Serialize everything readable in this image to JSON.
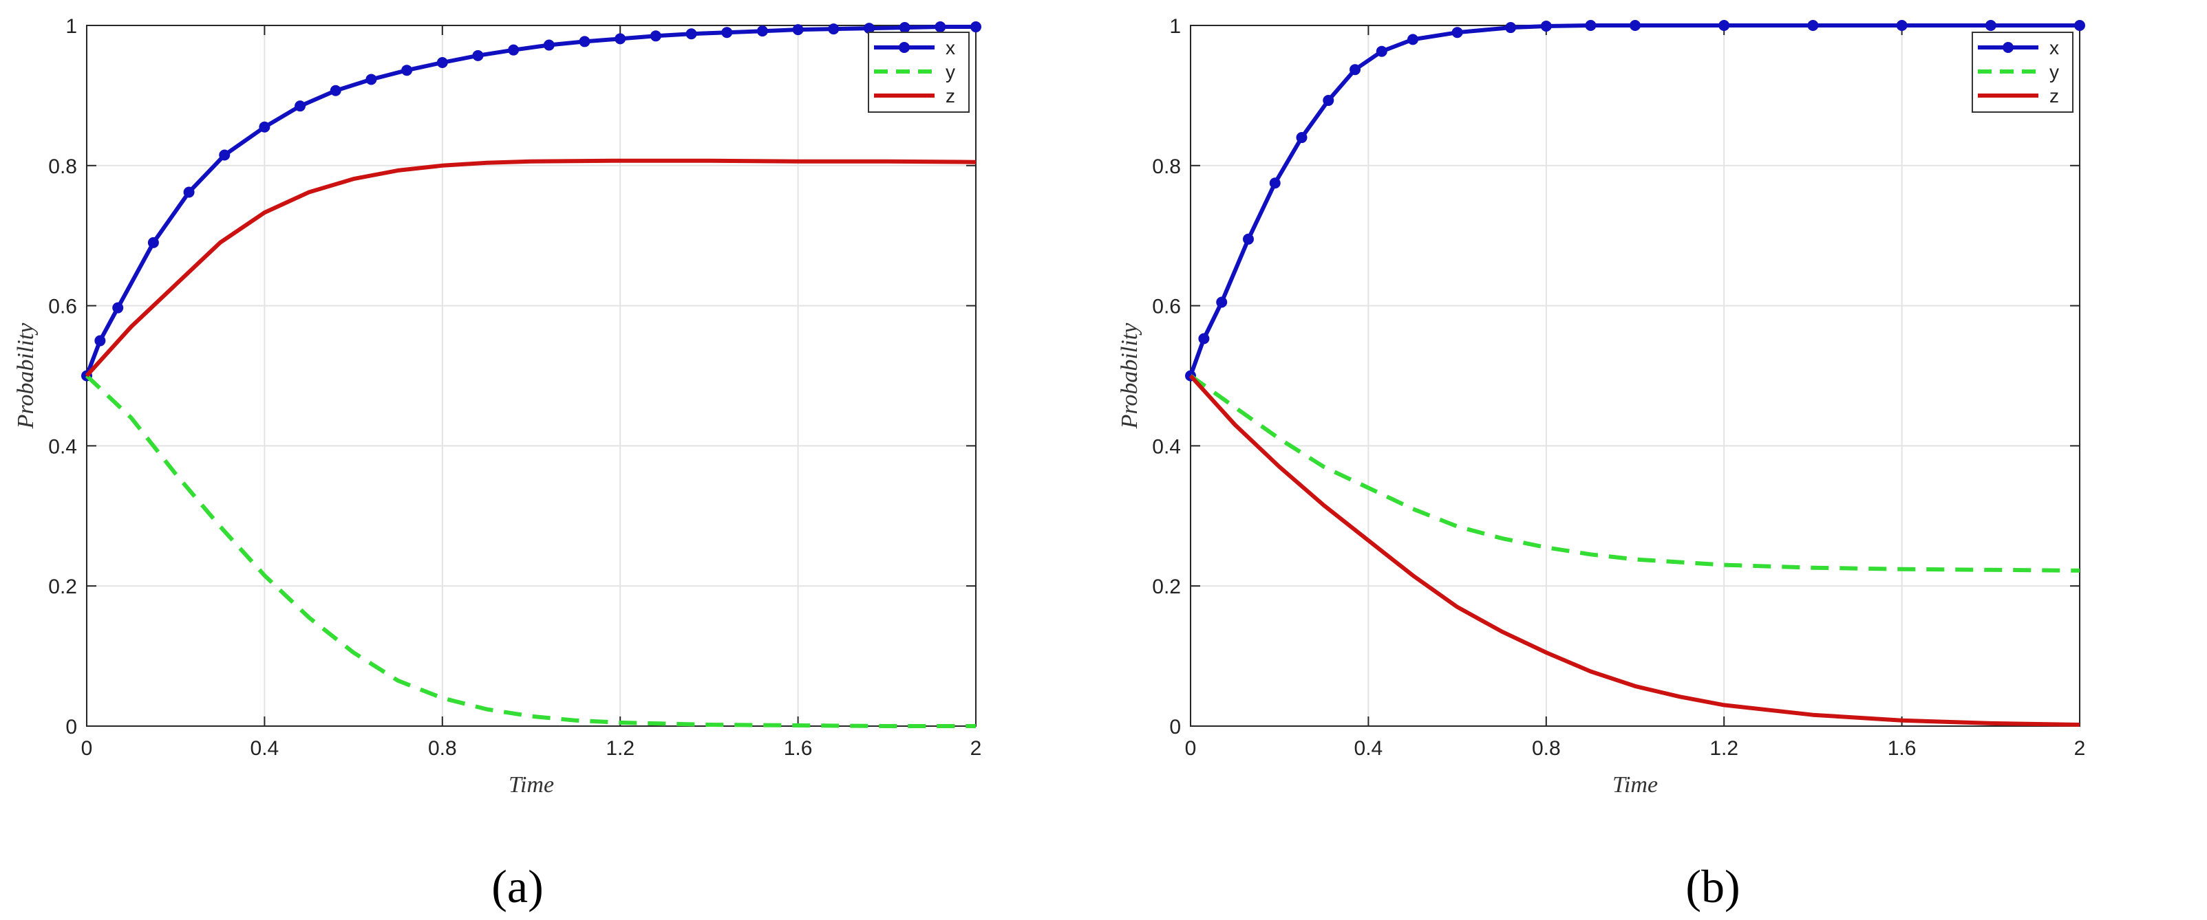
{
  "chart_data": [
    {
      "type": "line",
      "caption": "(a)",
      "title": "",
      "xlabel": "Time",
      "ylabel": "Probability",
      "xlim": [
        0,
        2
      ],
      "ylim": [
        0,
        1
      ],
      "x_ticks": [
        "0",
        "0.4",
        "0.8",
        "1.2",
        "1.6",
        "2"
      ],
      "y_ticks": [
        "0",
        "0.2",
        "0.4",
        "0.6",
        "0.8",
        "1"
      ],
      "grid": true,
      "legend": "top-right",
      "series": [
        {
          "name": "x",
          "color": "#1010c0",
          "style": "solid-markers",
          "points": [
            [
              0,
              0.5
            ],
            [
              0.03,
              0.55
            ],
            [
              0.07,
              0.597
            ],
            [
              0.15,
              0.69
            ],
            [
              0.23,
              0.762
            ],
            [
              0.31,
              0.815
            ],
            [
              0.4,
              0.855
            ],
            [
              0.48,
              0.885
            ],
            [
              0.56,
              0.907
            ],
            [
              0.64,
              0.923
            ],
            [
              0.72,
              0.936
            ],
            [
              0.8,
              0.947
            ],
            [
              0.88,
              0.957
            ],
            [
              0.96,
              0.965
            ],
            [
              1.04,
              0.972
            ],
            [
              1.12,
              0.977
            ],
            [
              1.2,
              0.981
            ],
            [
              1.28,
              0.985
            ],
            [
              1.36,
              0.988
            ],
            [
              1.44,
              0.99
            ],
            [
              1.52,
              0.992
            ],
            [
              1.6,
              0.994
            ],
            [
              1.68,
              0.995
            ],
            [
              1.76,
              0.996
            ],
            [
              1.84,
              0.997
            ],
            [
              1.92,
              0.998
            ],
            [
              2.0,
              0.998
            ]
          ]
        },
        {
          "name": "y",
          "color": "#33dd33",
          "style": "dashed",
          "points": [
            [
              0,
              0.5
            ],
            [
              0.1,
              0.44
            ],
            [
              0.2,
              0.36
            ],
            [
              0.3,
              0.285
            ],
            [
              0.4,
              0.215
            ],
            [
              0.5,
              0.155
            ],
            [
              0.6,
              0.105
            ],
            [
              0.7,
              0.065
            ],
            [
              0.8,
              0.04
            ],
            [
              0.9,
              0.024
            ],
            [
              1.0,
              0.014
            ],
            [
              1.1,
              0.008
            ],
            [
              1.2,
              0.005
            ],
            [
              1.4,
              0.002
            ],
            [
              1.6,
              0.001
            ],
            [
              1.8,
              0.0
            ],
            [
              2.0,
              0.0
            ]
          ]
        },
        {
          "name": "z",
          "color": "#cc1111",
          "style": "solid",
          "points": [
            [
              0,
              0.5
            ],
            [
              0.1,
              0.57
            ],
            [
              0.2,
              0.63
            ],
            [
              0.3,
              0.69
            ],
            [
              0.4,
              0.733
            ],
            [
              0.5,
              0.762
            ],
            [
              0.6,
              0.781
            ],
            [
              0.7,
              0.793
            ],
            [
              0.8,
              0.8
            ],
            [
              0.9,
              0.804
            ],
            [
              1.0,
              0.806
            ],
            [
              1.2,
              0.807
            ],
            [
              1.4,
              0.807
            ],
            [
              1.6,
              0.806
            ],
            [
              1.8,
              0.806
            ],
            [
              2.0,
              0.805
            ]
          ]
        }
      ]
    },
    {
      "type": "line",
      "caption": "(b)",
      "title": "",
      "xlabel": "Time",
      "ylabel": "Probability",
      "xlim": [
        0,
        2
      ],
      "ylim": [
        0,
        1
      ],
      "x_ticks": [
        "0",
        "0.4",
        "0.8",
        "1.2",
        "1.6",
        "2"
      ],
      "y_ticks": [
        "0",
        "0.2",
        "0.4",
        "0.6",
        "0.8",
        "1"
      ],
      "grid": true,
      "legend": "top-right",
      "series": [
        {
          "name": "x",
          "color": "#1010c0",
          "style": "solid-markers",
          "points": [
            [
              0,
              0.5
            ],
            [
              0.03,
              0.553
            ],
            [
              0.07,
              0.605
            ],
            [
              0.13,
              0.695
            ],
            [
              0.19,
              0.775
            ],
            [
              0.25,
              0.84
            ],
            [
              0.31,
              0.893
            ],
            [
              0.37,
              0.937
            ],
            [
              0.43,
              0.963
            ],
            [
              0.5,
              0.98
            ],
            [
              0.6,
              0.99
            ],
            [
              0.72,
              0.997
            ],
            [
              0.8,
              0.999
            ],
            [
              0.9,
              1.0
            ],
            [
              1.0,
              1.0
            ],
            [
              1.2,
              1.0
            ],
            [
              1.4,
              1.0
            ],
            [
              1.6,
              1.0
            ],
            [
              1.8,
              1.0
            ],
            [
              2.0,
              1.0
            ]
          ]
        },
        {
          "name": "y",
          "color": "#33dd33",
          "style": "dashed",
          "points": [
            [
              0,
              0.5
            ],
            [
              0.1,
              0.455
            ],
            [
              0.2,
              0.41
            ],
            [
              0.3,
              0.37
            ],
            [
              0.4,
              0.34
            ],
            [
              0.5,
              0.31
            ],
            [
              0.6,
              0.285
            ],
            [
              0.7,
              0.268
            ],
            [
              0.8,
              0.255
            ],
            [
              0.9,
              0.245
            ],
            [
              1.0,
              0.238
            ],
            [
              1.2,
              0.23
            ],
            [
              1.4,
              0.226
            ],
            [
              1.6,
              0.224
            ],
            [
              1.8,
              0.223
            ],
            [
              2.0,
              0.222
            ]
          ]
        },
        {
          "name": "z",
          "color": "#cc1111",
          "style": "solid",
          "points": [
            [
              0,
              0.5
            ],
            [
              0.1,
              0.43
            ],
            [
              0.2,
              0.37
            ],
            [
              0.3,
              0.315
            ],
            [
              0.4,
              0.265
            ],
            [
              0.5,
              0.215
            ],
            [
              0.6,
              0.17
            ],
            [
              0.7,
              0.135
            ],
            [
              0.8,
              0.105
            ],
            [
              0.9,
              0.078
            ],
            [
              1.0,
              0.057
            ],
            [
              1.1,
              0.042
            ],
            [
              1.2,
              0.03
            ],
            [
              1.4,
              0.016
            ],
            [
              1.6,
              0.008
            ],
            [
              1.8,
              0.004
            ],
            [
              2.0,
              0.002
            ]
          ]
        }
      ]
    }
  ]
}
